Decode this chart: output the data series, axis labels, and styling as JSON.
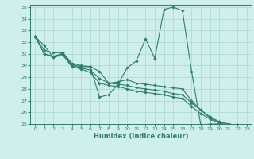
{
  "title": "",
  "xlabel": "Humidex (Indice chaleur)",
  "bg_color": "#cff0ea",
  "grid_color": "#a8d8ce",
  "line_color": "#2e7d6e",
  "xlim": [
    -0.5,
    23.5
  ],
  "ylim": [
    25,
    35.2
  ],
  "yticks": [
    25,
    26,
    27,
    28,
    29,
    30,
    31,
    32,
    33,
    34,
    35
  ],
  "xticks": [
    0,
    1,
    2,
    3,
    4,
    5,
    6,
    7,
    8,
    9,
    10,
    11,
    12,
    13,
    14,
    15,
    16,
    17,
    18,
    19,
    20,
    21,
    22,
    23
  ],
  "series": [
    [
      32.5,
      31.7,
      30.7,
      31.1,
      30.2,
      30.0,
      29.9,
      27.3,
      27.5,
      28.4,
      29.8,
      30.4,
      32.3,
      30.6,
      34.8,
      35.0,
      34.7,
      29.5,
      24.9,
      25.0,
      25.0,
      24.9,
      24.9,
      24.8
    ],
    [
      32.5,
      31.3,
      31.1,
      31.1,
      30.1,
      29.9,
      29.9,
      29.5,
      28.5,
      28.6,
      28.8,
      28.5,
      28.4,
      28.3,
      28.2,
      28.1,
      28.0,
      27.0,
      26.2,
      25.5,
      25.2,
      25.0,
      24.9,
      24.8
    ],
    [
      32.5,
      31.0,
      30.8,
      31.0,
      30.0,
      29.8,
      29.6,
      28.9,
      28.5,
      28.4,
      28.3,
      28.1,
      28.0,
      27.9,
      27.8,
      27.6,
      27.5,
      26.8,
      26.2,
      25.6,
      25.2,
      25.0,
      24.9,
      24.8
    ],
    [
      32.5,
      31.0,
      30.7,
      30.9,
      29.9,
      29.7,
      29.4,
      28.5,
      28.3,
      28.2,
      28.0,
      27.8,
      27.7,
      27.6,
      27.5,
      27.3,
      27.2,
      26.5,
      25.9,
      25.4,
      25.1,
      24.9,
      24.8,
      24.7
    ]
  ]
}
